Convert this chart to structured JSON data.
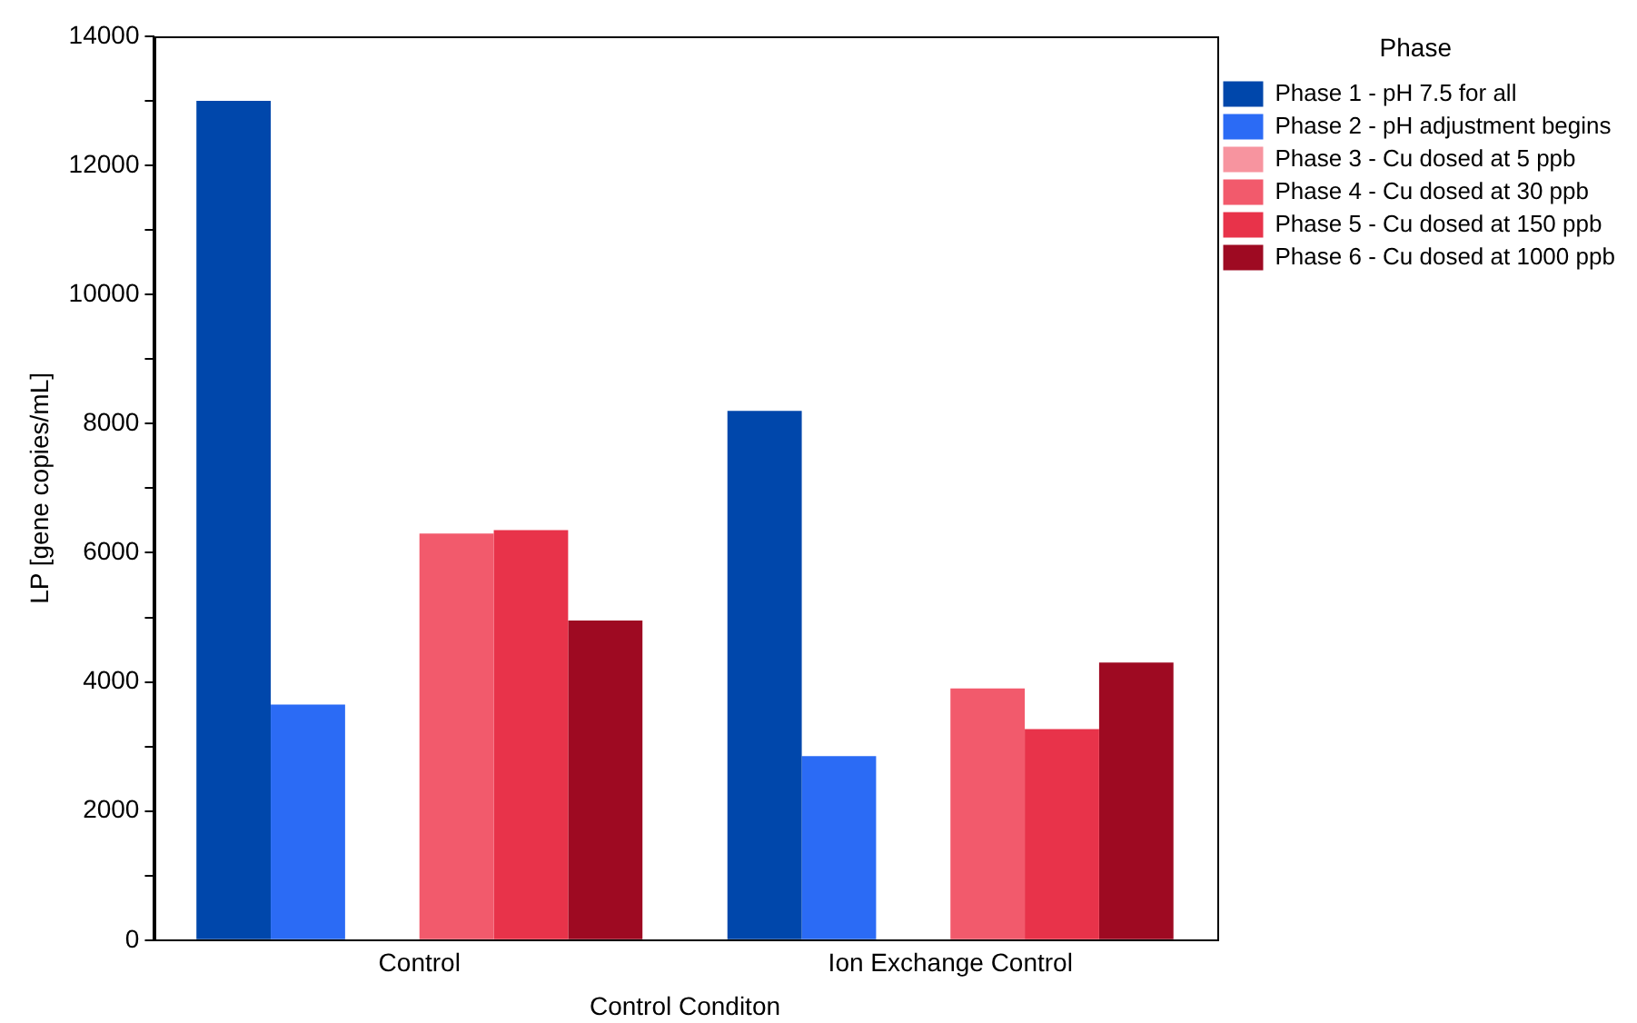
{
  "chart_data": {
    "type": "bar",
    "xlabel": "Control Conditon",
    "ylabel": "LP [gene copies/mL]",
    "legend_title": "Phase",
    "categories": [
      "Control",
      "Ion Exchange Control"
    ],
    "series": [
      {
        "name": "Phase 1 - pH 7.5 for all",
        "color": "#0047ab",
        "values": [
          13000,
          8200
        ]
      },
      {
        "name": "Phase 2 - pH adjustment begins",
        "color": "#2b6bf5",
        "values": [
          3650,
          2850
        ]
      },
      {
        "name": "Phase 3 - Cu dosed at 5 ppb",
        "color": "#f7949f",
        "values": [
          null,
          null
        ]
      },
      {
        "name": "Phase 4 - Cu dosed at 30 ppb",
        "color": "#f25a6c",
        "values": [
          6300,
          3900
        ]
      },
      {
        "name": "Phase 5 - Cu dosed at 150 ppb",
        "color": "#e8334a",
        "values": [
          6350,
          3270
        ]
      },
      {
        "name": "Phase 6 - Cu dosed at 1000 ppb",
        "color": "#9e0a22",
        "values": [
          4950,
          4300
        ]
      }
    ],
    "ylim": [
      0,
      14000
    ],
    "yticks": [
      0,
      {
        "value": 1000,
        "label": null
      },
      2000,
      {
        "value": 3000,
        "label": null
      },
      4000,
      {
        "value": 5000,
        "label": null
      },
      6000,
      {
        "value": 7000,
        "label": null
      },
      8000,
      {
        "value": 9000,
        "label": null
      },
      10000,
      {
        "value": 11000,
        "label": null
      },
      12000,
      {
        "value": 13000,
        "label": null
      },
      14000
    ],
    "grid": false,
    "legend": "top right"
  }
}
